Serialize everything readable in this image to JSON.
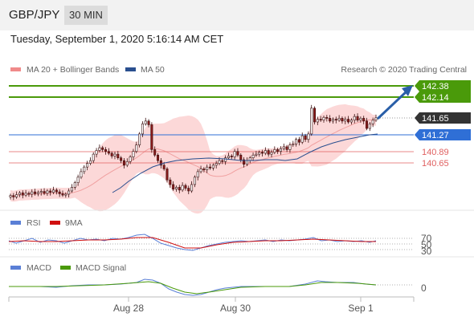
{
  "header": {
    "pair": "GBP/JPY",
    "timeframe": "30 MIN"
  },
  "timestamp": "Tuesday, September 1, 2020 5:16:14 AM CET",
  "legend": {
    "ma_bb": "MA 20 + Bollinger Bands",
    "ma50": "MA 50",
    "credit": "Research © 2020 Trading Central"
  },
  "colors": {
    "green": "#4a9a0a",
    "blue": "#2f6fd6",
    "red": "#e06060",
    "dark": "#333333",
    "candle": "#8b1a1a",
    "band": "#fcd8d8"
  },
  "chart_data": [
    {
      "type": "candlestick",
      "title": "GBP/JPY 30 MIN",
      "x_ticks": [
        "Aug 28",
        "Aug 30",
        "Sep 1"
      ],
      "ylim": [
        139.7,
        142.55
      ],
      "levels": [
        {
          "value": 142.38,
          "label": "142.38",
          "kind": "resistance"
        },
        {
          "value": 142.14,
          "label": "142.14",
          "kind": "resistance"
        },
        {
          "value": 141.65,
          "label": "141.65",
          "kind": "last"
        },
        {
          "value": 141.27,
          "label": "141.27",
          "kind": "pivot"
        },
        {
          "value": 140.89,
          "label": "140.89",
          "kind": "support"
        },
        {
          "value": 140.65,
          "label": "140.65",
          "kind": "support"
        }
      ],
      "closes": [
        139.96,
        139.93,
        139.98,
        140.02,
        139.97,
        140.01,
        139.99,
        140.04,
        140.0,
        140.03,
        140.05,
        140.01,
        140.06,
        140.03,
        140.08,
        140.04,
        140.0,
        139.97,
        139.99,
        140.06,
        140.14,
        140.24,
        140.36,
        140.48,
        140.58,
        140.66,
        140.72,
        140.86,
        140.94,
        141.0,
        140.96,
        140.92,
        140.88,
        140.82,
        140.86,
        140.78,
        140.72,
        140.62,
        140.7,
        140.8,
        140.92,
        141.06,
        141.3,
        141.52,
        141.58,
        141.5,
        140.96,
        140.84,
        140.72,
        140.62,
        140.54,
        140.3,
        140.2,
        140.1,
        140.14,
        140.08,
        140.18,
        140.12,
        140.06,
        140.2,
        140.36,
        140.48,
        140.54,
        140.52,
        140.58,
        140.56,
        140.62,
        140.66,
        140.72,
        140.7,
        140.78,
        140.82,
        140.8,
        140.92,
        140.84,
        140.74,
        140.64,
        140.72,
        140.78,
        140.84,
        140.86,
        140.9,
        140.88,
        140.94,
        140.86,
        140.9,
        140.96,
        140.92,
        140.98,
        141.02,
        140.96,
        141.06,
        141.08,
        141.18,
        141.12,
        141.26,
        141.18,
        141.3,
        141.86,
        141.56,
        141.62,
        141.6,
        141.66,
        141.64,
        141.58,
        141.62,
        141.6,
        141.64,
        141.58,
        141.62,
        141.56,
        141.6,
        141.68,
        141.6,
        141.64,
        141.58,
        141.42,
        141.52,
        141.6,
        141.65
      ],
      "ma50_points": [
        [
          140,
          240
        ],
        [
          150,
          234
        ],
        [
          160,
          226
        ],
        [
          175,
          216
        ],
        [
          190,
          208
        ],
        [
          205,
          203
        ],
        [
          220,
          200
        ],
        [
          240,
          198
        ],
        [
          260,
          197
        ],
        [
          280,
          198
        ],
        [
          300,
          200
        ],
        [
          315,
          200
        ],
        [
          330,
          199
        ],
        [
          345,
          199
        ],
        [
          355,
          200
        ],
        [
          370,
          198
        ],
        [
          385,
          190
        ],
        [
          400,
          183
        ],
        [
          415,
          178
        ],
        [
          430,
          174
        ],
        [
          445,
          171
        ],
        [
          460,
          168
        ],
        [
          470,
          167
        ]
      ],
      "forecast_target": 142.38
    },
    {
      "type": "line",
      "title": "RSI",
      "series": [
        {
          "name": "RSI"
        },
        {
          "name": "9MA"
        }
      ],
      "levels": [
        70,
        50,
        30
      ]
    },
    {
      "type": "line",
      "title": "MACD",
      "series": [
        {
          "name": "MACD"
        },
        {
          "name": "MACD Signal"
        }
      ],
      "levels": [
        0
      ]
    }
  ]
}
